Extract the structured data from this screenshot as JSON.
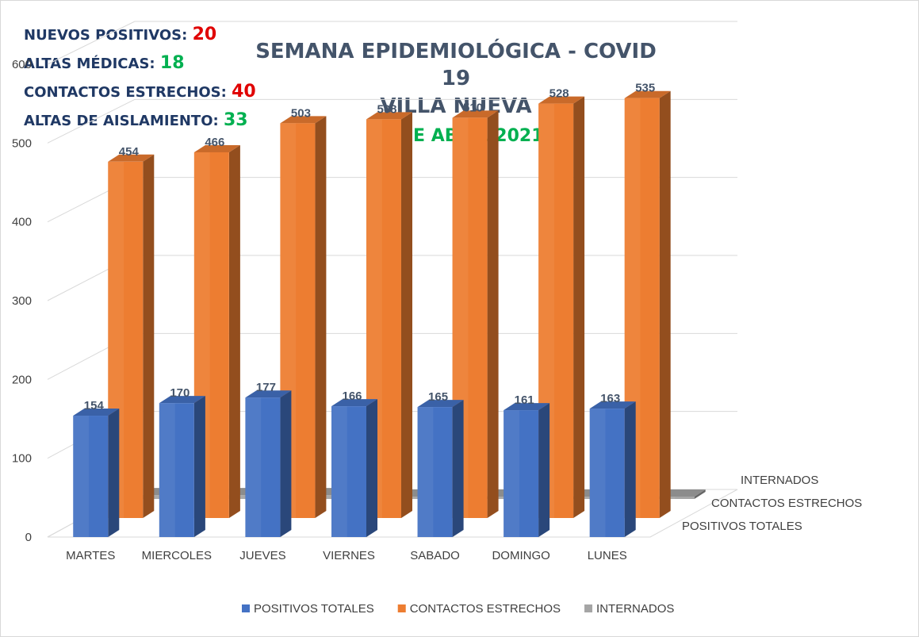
{
  "stats": [
    {
      "label": "NUEVOS POSITIVOS:",
      "value": "20",
      "value_color": "#e00000"
    },
    {
      "label": "ALTAS MÉDICAS:",
      "value": "18",
      "value_color": "#00b050"
    },
    {
      "label": "CONTACTOS ESTRECHOS:",
      "value": "40",
      "value_color": "#e00000"
    },
    {
      "label": "ALTAS DE AISLAMIENTO:",
      "value": "33",
      "value_color": "#00b050"
    }
  ],
  "title": {
    "line1": "SEMANA EPIDEMIOLÓGICA - COVID 19",
    "line2": "VILLA NUEVA",
    "line3": "19 DE ABRIL 2021"
  },
  "chart_data": {
    "type": "bar",
    "categories": [
      "MARTES",
      "MIERCOLES",
      "JUEVES",
      "VIERNES",
      "SABADO",
      "DOMINGO",
      "LUNES"
    ],
    "series": [
      {
        "name": "POSITIVOS TOTALES",
        "values": [
          154,
          170,
          177,
          166,
          165,
          161,
          163
        ],
        "color": "#4472c4"
      },
      {
        "name": "CONTACTOS ESTRECHOS",
        "values": [
          454,
          466,
          503,
          508,
          510,
          528,
          535
        ],
        "color": "#ed7d31"
      },
      {
        "name": "INTERNADOS",
        "values": [
          5,
          5,
          5,
          3,
          3,
          3,
          3
        ],
        "color": "#a5a5a5"
      }
    ],
    "y_ticks": [
      0,
      100,
      200,
      300,
      400,
      500,
      600
    ],
    "ylim": [
      0,
      600
    ],
    "grid": true,
    "legend_position": "bottom",
    "three_d": true
  }
}
